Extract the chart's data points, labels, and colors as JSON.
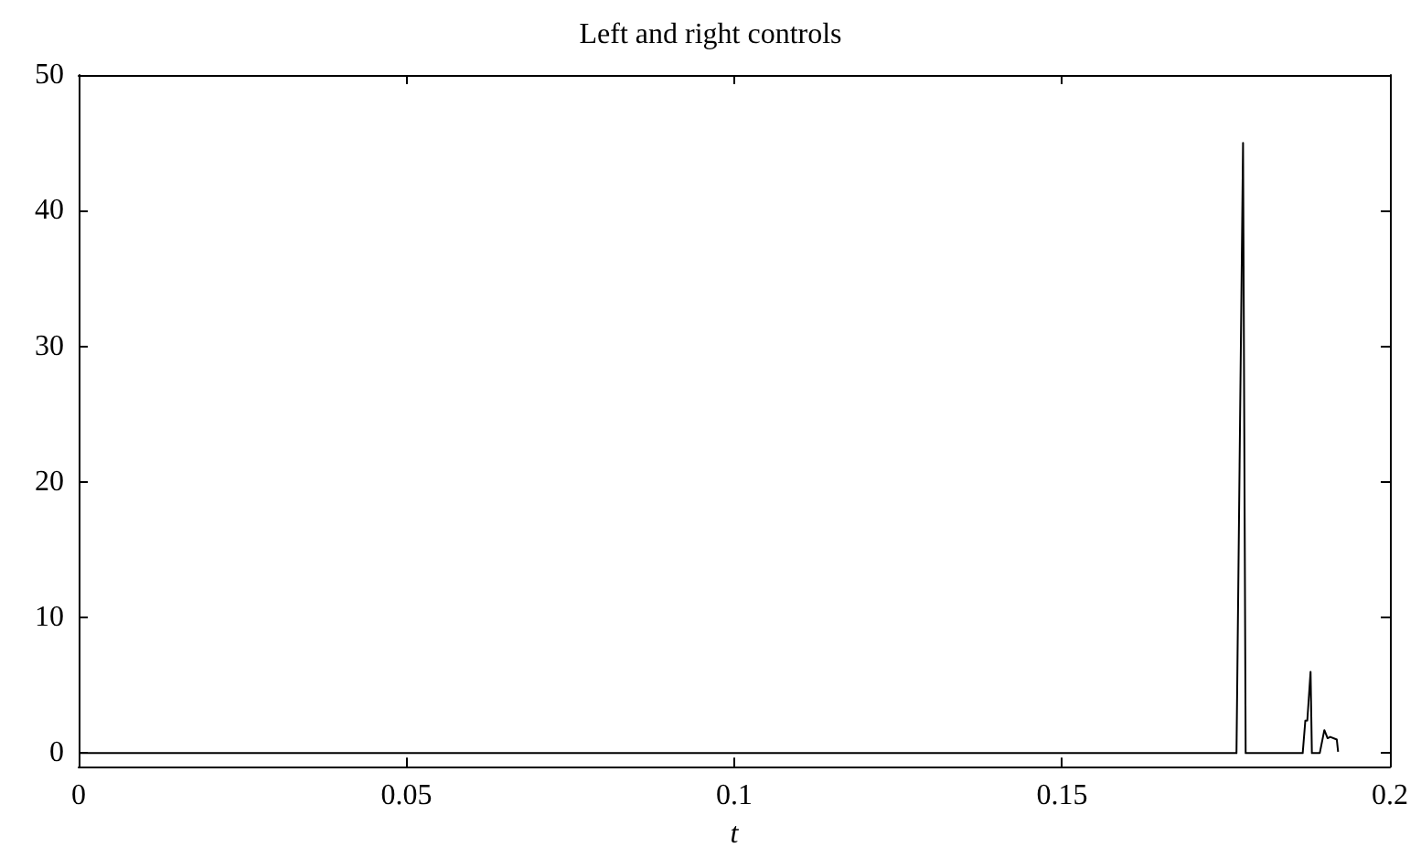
{
  "chart_data": {
    "type": "line",
    "title": "Left and right controls",
    "xlabel": "t",
    "x": [
      0,
      0.1766,
      0.1776,
      0.178,
      0.1867,
      0.1871,
      0.1874,
      0.1879,
      0.1881,
      0.1893,
      0.19,
      0.1905,
      0.1909,
      0.1919,
      0.1921
    ],
    "series": [
      {
        "color": "#000000",
        "values": [
          0,
          0,
          45,
          0,
          0,
          2.4,
          2.4,
          6,
          0,
          0,
          1.7,
          1.1,
          1.2,
          1,
          0.1
        ]
      }
    ],
    "xlim": [
      0,
      0.2
    ],
    "xticks": [
      0,
      0.05,
      0.1,
      0.15,
      0.2
    ],
    "ylim": [
      -1,
      50
    ],
    "yticks": [
      0,
      10,
      20,
      30,
      40,
      50
    ],
    "grid": false,
    "marker": "none",
    "line_style": "solid"
  }
}
